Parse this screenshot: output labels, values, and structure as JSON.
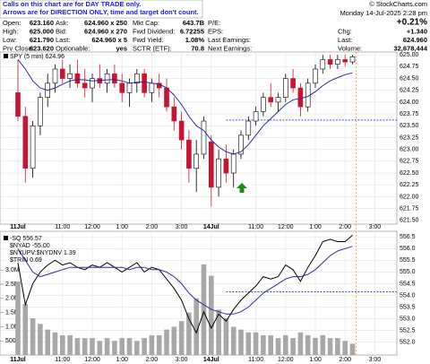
{
  "header": {
    "notice": [
      "Calls on this chart are for DAY TRADE only.",
      "Arrows are for DIRECTION ONLY, time and target don't count."
    ],
    "copyright": "© StockCharts.com",
    "datetime": "Monday 14-Jul-2025 2:28 pm",
    "change_pct": "+0.21%",
    "rows": [
      [
        [
          "Open:",
          "623.160"
        ],
        [
          "Ask:",
          "624.960 x 250"
        ],
        [
          "Mkt Cap:",
          "643.7B"
        ],
        [
          "P/E:"
        ]
      ],
      [
        [
          "High:",
          "625.000"
        ],
        [
          "Bid:",
          "624.960 x 270"
        ],
        [
          "Fwd Dividend:",
          "6.72255"
        ],
        [
          "EPS:"
        ],
        [
          "Chg:",
          "+1.340"
        ]
      ],
      [
        [
          "Low:",
          "621.790"
        ],
        [
          "Last:",
          "624.960 x 5"
        ],
        [
          "Fwd Yield:",
          "1.08%"
        ],
        [
          "Last Earnings:"
        ],
        [
          "Last:",
          "624.960"
        ]
      ],
      [
        [
          "Prv Close:",
          "623.620"
        ],
        [
          "Optionable:",
          "yes"
        ],
        [
          "SCTR (ETF):",
          "70.8"
        ],
        [
          "Next Earnings:"
        ],
        [
          "Volume:",
          "32,678,444"
        ]
      ]
    ]
  },
  "chart_data": [
    {
      "type": "candlestick",
      "title": "SPY (5 min) 624.96",
      "categories": [
        "11Jul",
        null,
        null,
        null,
        null,
        null,
        "11:00",
        null,
        null,
        null,
        "12:00",
        null,
        null,
        null,
        "1:00",
        null,
        null,
        null,
        "2:00",
        null,
        null,
        null,
        "3:00",
        null,
        null,
        null,
        "14Jul",
        null,
        null,
        null,
        null,
        null,
        "11:00",
        null,
        null,
        null,
        "12:00",
        null,
        null,
        null,
        "1:00",
        null,
        null,
        null,
        "2:00",
        null,
        null,
        null,
        "3:00",
        null
      ],
      "open": [
        624.2,
        623.7,
        622.6,
        623.5,
        624.1,
        624.4,
        624.7,
        624.5,
        624.6,
        624.4,
        624.3,
        624.5,
        624.4,
        624.6,
        624.4,
        624.2,
        624.4,
        624.6,
        624.2,
        624.4,
        624.3,
        623.9,
        623.6,
        623.2,
        622.6,
        622.9,
        623.16,
        622.2,
        622.8,
        622.5,
        622.9,
        623.3,
        623.6,
        623.8,
        624.1,
        624.0,
        624.1,
        624.5,
        624.3,
        623.9,
        624.4,
        624.7,
        624.9,
        624.8,
        624.9,
        624.85,
        null,
        null,
        null,
        null
      ],
      "high": [
        624.9,
        623.9,
        623.6,
        624.2,
        624.6,
        624.8,
        624.9,
        624.8,
        624.9,
        624.7,
        624.6,
        624.8,
        624.7,
        624.8,
        624.6,
        624.5,
        624.7,
        624.7,
        624.5,
        624.6,
        624.5,
        624.1,
        623.8,
        623.4,
        623.2,
        623.7,
        623.3,
        623.0,
        623.1,
        623.0,
        623.4,
        623.7,
        623.9,
        624.2,
        624.4,
        624.2,
        624.6,
        624.7,
        624.4,
        624.5,
        624.8,
        625.0,
        625.0,
        625.0,
        625.0,
        625.0,
        null,
        null,
        null,
        null
      ],
      "low": [
        623.6,
        622.3,
        622.4,
        623.3,
        623.9,
        624.2,
        624.4,
        624.3,
        624.3,
        624.1,
        624.0,
        624.3,
        624.2,
        624.3,
        624.0,
        623.9,
        624.2,
        624.1,
        624.0,
        624.1,
        623.8,
        623.4,
        623.0,
        622.3,
        622.1,
        622.8,
        621.79,
        622.0,
        622.3,
        622.2,
        622.8,
        623.2,
        623.5,
        623.7,
        623.9,
        623.8,
        624.0,
        624.2,
        623.7,
        623.8,
        624.3,
        624.6,
        624.7,
        624.7,
        624.75,
        624.8,
        null,
        null,
        null,
        null
      ],
      "close": [
        623.7,
        622.6,
        623.5,
        624.1,
        624.4,
        624.7,
        624.5,
        624.6,
        624.4,
        624.3,
        624.5,
        624.4,
        624.6,
        624.4,
        624.2,
        624.4,
        624.6,
        624.2,
        624.4,
        624.3,
        623.9,
        623.6,
        623.2,
        622.6,
        622.9,
        623.6,
        622.2,
        622.8,
        622.5,
        622.9,
        623.3,
        623.6,
        623.8,
        624.1,
        624.0,
        624.1,
        624.5,
        624.3,
        623.9,
        624.4,
        624.7,
        624.9,
        624.8,
        624.9,
        624.85,
        624.96,
        null,
        null,
        null,
        null
      ],
      "ma": {
        "color": "#2b2b9a",
        "values": [
          624.9,
          624.7,
          624.45,
          624.3,
          624.25,
          624.3,
          624.38,
          624.45,
          624.48,
          624.47,
          624.45,
          624.46,
          624.47,
          624.48,
          624.45,
          624.4,
          624.42,
          624.43,
          624.4,
          624.38,
          624.3,
          624.15,
          623.95,
          623.7,
          623.5,
          623.4,
          623.2,
          623.05,
          622.95,
          622.9,
          622.95,
          623.1,
          623.3,
          623.5,
          623.65,
          623.8,
          623.95,
          624.05,
          624.08,
          624.12,
          624.22,
          624.35,
          624.45,
          624.52,
          624.58,
          624.62,
          null,
          null,
          null,
          null
        ]
      },
      "up_color": "#ffffff",
      "down_color": "#cc1133",
      "hline": 623.62,
      "hline_color": "#3333cc",
      "ylim": [
        621.42,
        625.06
      ],
      "yticks": [
        {
          "value": 621.5,
          "label": "621.50"
        },
        {
          "value": 621.75,
          "label": "621.75"
        },
        {
          "value": 622,
          "label": "622.00"
        },
        {
          "value": 622.25,
          "label": "622.25"
        },
        {
          "value": 622.5,
          "label": "622.50"
        },
        {
          "value": 622.75,
          "label": "622.75"
        },
        {
          "value": 623,
          "label": "623.00"
        },
        {
          "value": 623.25,
          "label": "623.25"
        },
        {
          "value": 623.5,
          "label": "623.50"
        },
        {
          "value": 623.75,
          "label": "623.75"
        },
        {
          "value": 624,
          "label": "624.00"
        },
        {
          "value": 624.25,
          "label": "624.25"
        },
        {
          "value": 624.5,
          "label": "624.50"
        },
        {
          "value": 624.75,
          "label": "624.75"
        },
        {
          "value": 625,
          "label": "625.00"
        }
      ],
      "grid": true
    },
    {
      "type": "line",
      "categories": [
        "11Jul",
        null,
        null,
        null,
        null,
        null,
        "11:00",
        null,
        null,
        null,
        "12:00",
        null,
        null,
        null,
        "1:00",
        null,
        null,
        null,
        "2:00",
        null,
        null,
        null,
        "3:00",
        null,
        null,
        null,
        "14Jul",
        null,
        null,
        null,
        null,
        null,
        "11:00",
        null,
        null,
        null,
        "12:00",
        null,
        null,
        null,
        "1:00",
        null,
        null,
        null,
        "2:00",
        null,
        null,
        null,
        "3:00",
        null
      ],
      "series": [
        {
          "name": "-SQ 556.57",
          "color": "#000000",
          "values": [
            555.4,
            553.6,
            554.5,
            555.0,
            555.3,
            555.5,
            555.3,
            555.4,
            555.2,
            555.1,
            555.3,
            555.2,
            555.4,
            555.2,
            555.0,
            555.2,
            555.4,
            555.0,
            555.2,
            555.1,
            554.7,
            554.3,
            553.8,
            553.0,
            552.4,
            553.3,
            552.6,
            553.2,
            552.9,
            553.4,
            553.8,
            554.1,
            554.4,
            554.8,
            554.7,
            554.8,
            555.3,
            555.1,
            554.6,
            555.2,
            555.7,
            556.3,
            556.4,
            556.3,
            556.3,
            556.57,
            null,
            null,
            null,
            null
          ]
        },
        {
          "name": "Volume",
          "color": "#a8a8a8",
          "axis": "y2",
          "values": [
            2600000,
            1800000,
            1300000,
            1100000,
            900000,
            800000,
            700000,
            700000,
            600000,
            600000,
            600000,
            500000,
            600000,
            500000,
            600000,
            600000,
            500000,
            600000,
            700000,
            700000,
            900000,
            1000000,
            1200000,
            1500000,
            2000000,
            3200000,
            2800000,
            1600000,
            1300000,
            1000000,
            900000,
            800000,
            800000,
            700000,
            700000,
            600000,
            700000,
            600000,
            800000,
            700000,
            600000,
            700000,
            600000,
            600000,
            500000,
            400000,
            null,
            null,
            null,
            null
          ]
        }
      ],
      "ma": {
        "color": "#2b2b9a",
        "values": [
          556.0,
          555.5,
          555.0,
          554.8,
          554.9,
          555.0,
          555.1,
          555.2,
          555.2,
          555.2,
          555.2,
          555.2,
          555.2,
          555.2,
          555.2,
          555.1,
          555.2,
          555.2,
          555.1,
          555.1,
          555.0,
          554.8,
          554.5,
          554.1,
          553.8,
          553.6,
          553.4,
          553.3,
          553.2,
          553.2,
          553.3,
          553.5,
          553.8,
          554.1,
          554.3,
          554.5,
          554.7,
          554.8,
          554.8,
          554.9,
          555.1,
          555.4,
          555.7,
          555.9,
          556.0,
          556.1,
          null,
          null,
          null,
          null
        ]
      },
      "annotations": [
        "$NYAD -55.00",
        "$NYUPV:$NYDNV 1.39",
        "$TRIN 0.69"
      ],
      "hline": 554.15,
      "hline_color": "#3333cc",
      "ylim": [
        551.45,
        556.74
      ],
      "yticks": [
        {
          "value": 552,
          "label": "552.0"
        },
        552.5,
        {
          "value": 553,
          "label": "553.0"
        },
        553.5,
        {
          "value": 554,
          "label": "554.0"
        },
        554.5,
        {
          "value": 555,
          "label": "555.0"
        },
        555.5,
        {
          "value": 556,
          "label": "556.0"
        },
        556.5
      ],
      "y2lim": [
        0,
        4370000
      ],
      "y2ticks": [
        {
          "value": 500000,
          "label": "500K"
        },
        {
          "value": 1000000,
          "label": "1.0M"
        },
        {
          "value": 1500000,
          "label": "1.5M"
        },
        {
          "value": 2000000,
          "label": "2.0M"
        },
        {
          "value": 2500000,
          "label": "2.5M"
        },
        {
          "value": 3000000,
          "label": "3.0M"
        }
      ],
      "grid": true
    }
  ]
}
